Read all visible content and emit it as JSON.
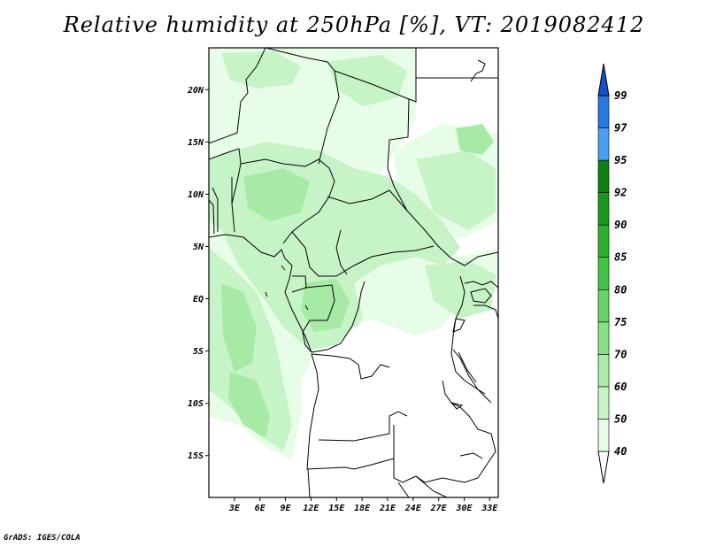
{
  "title": "Relative humidity at 250hPa [%], VT: 2019082412",
  "credit": "GrADS: IGES/COLA",
  "map": {
    "lon_range": [
      0,
      34
    ],
    "lat_range": [
      -19,
      24
    ],
    "lat_ticks": [
      {
        "value": 20,
        "label": "20N"
      },
      {
        "value": 15,
        "label": "15N"
      },
      {
        "value": 10,
        "label": "10N"
      },
      {
        "value": 5,
        "label": "5N"
      },
      {
        "value": 0,
        "label": "EQ"
      },
      {
        "value": -5,
        "label": "5S"
      },
      {
        "value": -10,
        "label": "10S"
      },
      {
        "value": -15,
        "label": "15S"
      }
    ],
    "lon_ticks": [
      {
        "value": 3,
        "label": "3E"
      },
      {
        "value": 6,
        "label": "6E"
      },
      {
        "value": 9,
        "label": "9E"
      },
      {
        "value": 12,
        "label": "12E"
      },
      {
        "value": 15,
        "label": "15E"
      },
      {
        "value": 18,
        "label": "18E"
      },
      {
        "value": 21,
        "label": "21E"
      },
      {
        "value": 24,
        "label": "24E"
      },
      {
        "value": 27,
        "label": "27E"
      },
      {
        "value": 30,
        "label": "30E"
      },
      {
        "value": 33,
        "label": "33E"
      }
    ]
  },
  "colorbar": {
    "levels": [
      "40",
      "50",
      "60",
      "70",
      "75",
      "80",
      "85",
      "90",
      "92",
      "95",
      "97",
      "99"
    ],
    "colors": [
      "#ffffff",
      "#e6fce6",
      "#c8f5c8",
      "#a8eca8",
      "#88e088",
      "#66d466",
      "#44c444",
      "#2eb02e",
      "#1a961a",
      "#0f800f",
      "#4aa0f0",
      "#2878e0",
      "#1450c8"
    ]
  }
}
